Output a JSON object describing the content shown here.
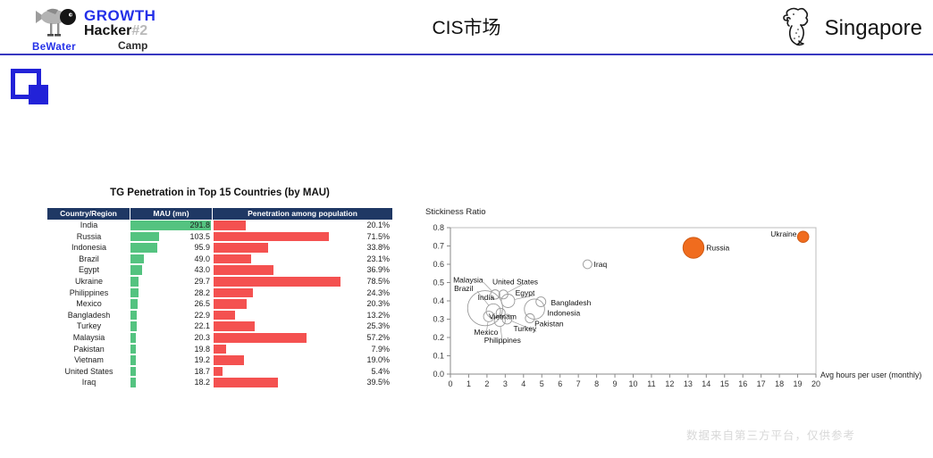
{
  "header": {
    "title": "CIS市场",
    "brand": {
      "growth": "GROWTH",
      "hacker": "Hacker",
      "number": "#2",
      "camp": "Camp",
      "bewater": "BeWater"
    },
    "right_brand": "Singapore"
  },
  "footer": {
    "watermark": "数据来自第三方平台，仅供参考"
  },
  "colors": {
    "brand_blue": "#2430e8",
    "divider_blue": "#3838c0",
    "icon_blue": "#2222d8",
    "table_header_navy": "#1f3864",
    "bar_green": "#54c380",
    "bar_red": "#f45150",
    "bubble_orange": "#f06c1e",
    "bubble_orange_stroke": "#cf5a14",
    "watermark_gray": "#d8d8d8"
  },
  "chart_data": [
    {
      "type": "table",
      "title": "TG Penetration in Top 15 Countries (by MAU)",
      "columns": [
        "Country/Region",
        "MAU (mn)",
        "Penetration among population"
      ],
      "rows": [
        {
          "country": "India",
          "mau": 291.8,
          "penetration_pct": 20.1
        },
        {
          "country": "Russia",
          "mau": 103.5,
          "penetration_pct": 71.5
        },
        {
          "country": "Indonesia",
          "mau": 95.9,
          "penetration_pct": 33.8
        },
        {
          "country": "Brazil",
          "mau": 49.0,
          "penetration_pct": 23.1
        },
        {
          "country": "Egypt",
          "mau": 43.0,
          "penetration_pct": 36.9
        },
        {
          "country": "Ukraine",
          "mau": 29.7,
          "penetration_pct": 78.5
        },
        {
          "country": "Philippines",
          "mau": 28.2,
          "penetration_pct": 24.3
        },
        {
          "country": "Mexico",
          "mau": 26.5,
          "penetration_pct": 20.3
        },
        {
          "country": "Bangladesh",
          "mau": 22.9,
          "penetration_pct": 13.2
        },
        {
          "country": "Turkey",
          "mau": 22.1,
          "penetration_pct": 25.3
        },
        {
          "country": "Malaysia",
          "mau": 20.3,
          "penetration_pct": 57.2
        },
        {
          "country": "Pakistan",
          "mau": 19.8,
          "penetration_pct": 7.9
        },
        {
          "country": "Vietnam",
          "mau": 19.2,
          "penetration_pct": 19.0
        },
        {
          "country": "United States",
          "mau": 18.7,
          "penetration_pct": 5.4
        },
        {
          "country": "Iraq",
          "mau": 18.2,
          "penetration_pct": 39.5
        }
      ]
    },
    {
      "type": "scatter",
      "title": "Stickiness Ratio",
      "xlabel": "Avg hours per user (monthly)",
      "ylabel": "Stickiness Ratio",
      "xlim": [
        0,
        20
      ],
      "xstep": 1,
      "ylim": [
        0,
        0.8
      ],
      "ystep": 0.1,
      "grid": false,
      "legend": "none",
      "bubble_size_means": "MAU (mn)",
      "points": [
        {
          "name": "Ukraine",
          "x": 19.3,
          "y": 0.75,
          "mau": 29.7,
          "filled": true,
          "label_x": 18.95,
          "label_y": 0.765,
          "anchor": "end",
          "leader": false
        },
        {
          "name": "Russia",
          "x": 13.3,
          "y": 0.69,
          "mau": 103.5,
          "filled": true,
          "label_x": 14.0,
          "label_y": 0.69,
          "anchor": "start",
          "leader": false
        },
        {
          "name": "Iraq",
          "x": 7.5,
          "y": 0.6,
          "mau": 18.2,
          "filled": false,
          "label_x": 7.85,
          "label_y": 0.6,
          "anchor": "start",
          "leader": false
        },
        {
          "name": "Malaysia",
          "x": 2.45,
          "y": 0.435,
          "mau": 20.3,
          "filled": false,
          "label_x": 0.15,
          "label_y": 0.515,
          "anchor": "start",
          "leader": true
        },
        {
          "name": "Brazil",
          "x": 2.35,
          "y": 0.345,
          "mau": 49.0,
          "filled": false,
          "label_x": 0.2,
          "label_y": 0.468,
          "anchor": "start",
          "leader": true
        },
        {
          "name": "India",
          "x": 1.9,
          "y": 0.36,
          "mau": 291.8,
          "filled": false,
          "label_x": 1.5,
          "label_y": 0.42,
          "anchor": "start",
          "leader": false
        },
        {
          "name": "United States",
          "x": 2.9,
          "y": 0.435,
          "mau": 18.7,
          "filled": false,
          "label_x": 2.3,
          "label_y": 0.505,
          "anchor": "start",
          "leader": true
        },
        {
          "name": "Egypt",
          "x": 3.15,
          "y": 0.4,
          "mau": 43.0,
          "filled": false,
          "label_x": 3.55,
          "label_y": 0.445,
          "anchor": "start",
          "leader": true
        },
        {
          "name": "Vietnam",
          "x": 2.75,
          "y": 0.335,
          "mau": 19.2,
          "filled": false,
          "label_x": 2.1,
          "label_y": 0.315,
          "anchor": "start",
          "leader": false
        },
        {
          "name": "Mexico",
          "x": 2.1,
          "y": 0.315,
          "mau": 26.5,
          "filled": false,
          "label_x": 1.95,
          "label_y": 0.23,
          "anchor": "middle",
          "leader": true
        },
        {
          "name": "Philippines",
          "x": 2.7,
          "y": 0.29,
          "mau": 28.2,
          "filled": false,
          "label_x": 2.85,
          "label_y": 0.185,
          "anchor": "middle",
          "leader": true
        },
        {
          "name": "Turkey",
          "x": 3.1,
          "y": 0.3,
          "mau": 22.1,
          "filled": false,
          "label_x": 3.45,
          "label_y": 0.248,
          "anchor": "start",
          "leader": true
        },
        {
          "name": "Bangladesh",
          "x": 4.95,
          "y": 0.395,
          "mau": 22.9,
          "filled": false,
          "label_x": 5.5,
          "label_y": 0.39,
          "anchor": "start",
          "leader": false
        },
        {
          "name": "Indonesia",
          "x": 4.6,
          "y": 0.355,
          "mau": 95.9,
          "filled": false,
          "label_x": 5.3,
          "label_y": 0.335,
          "anchor": "start",
          "leader": false
        },
        {
          "name": "Pakistan",
          "x": 4.35,
          "y": 0.305,
          "mau": 19.8,
          "filled": false,
          "label_x": 4.6,
          "label_y": 0.275,
          "anchor": "start",
          "leader": false
        }
      ]
    }
  ]
}
